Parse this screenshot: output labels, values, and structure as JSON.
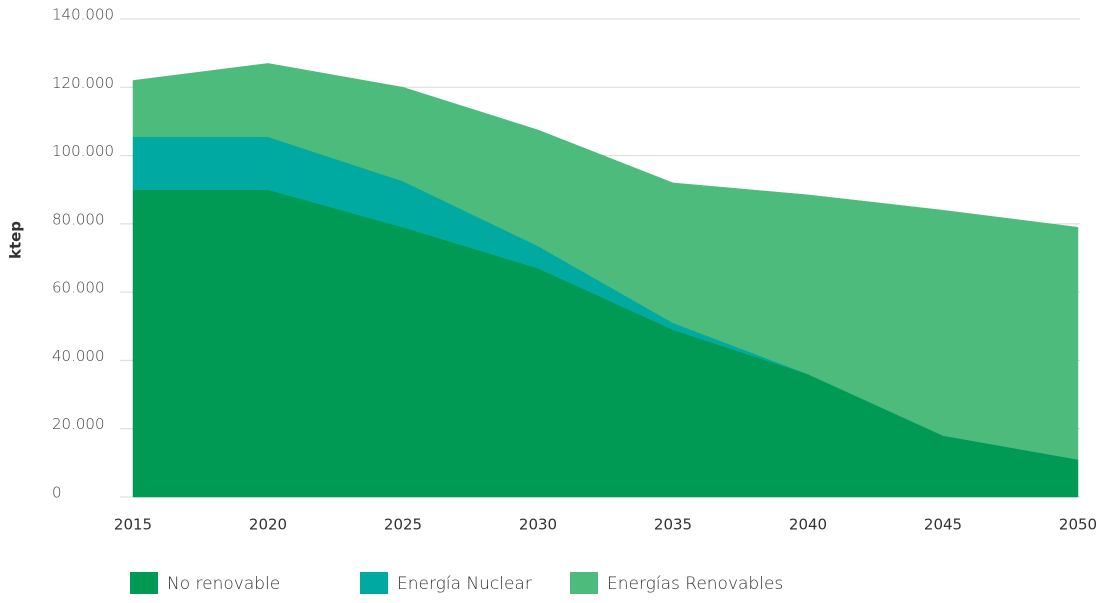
{
  "chart_data": {
    "type": "stacked_area",
    "y_label": "ktep",
    "categories": [
      "2015",
      "2020",
      "2025",
      "2030",
      "2035",
      "2040",
      "2045",
      "2050"
    ],
    "series": [
      {
        "name": "No renovable",
        "color": "#009a54",
        "values": [
          90000,
          90000,
          79000,
          67000,
          49000,
          36000,
          18000,
          11000
        ]
      },
      {
        "name": "Energía Nuclear",
        "color": "#00aaa0",
        "values": [
          15500,
          15500,
          13500,
          6500,
          2000,
          0,
          0,
          0
        ]
      },
      {
        "name": "Energías Renovables",
        "color": "#4cbb7c",
        "values": [
          16500,
          21500,
          27500,
          34000,
          41000,
          52500,
          66000,
          68000
        ]
      }
    ],
    "ylim": [
      0,
      140000
    ],
    "yticks": [
      0,
      {
        "value": 20000,
        "label": "20.000"
      },
      {
        "value": 40000,
        "label": "40.000"
      },
      {
        "value": 60000,
        "label": "60.000"
      },
      {
        "value": 80000,
        "label": "80.000"
      },
      {
        "value": 100000,
        "label": "100.000"
      },
      {
        "value": 120000,
        "label": "120.000"
      },
      {
        "value": 140000,
        "label": "140.000"
      }
    ],
    "grid": true,
    "legend": "bottom"
  }
}
